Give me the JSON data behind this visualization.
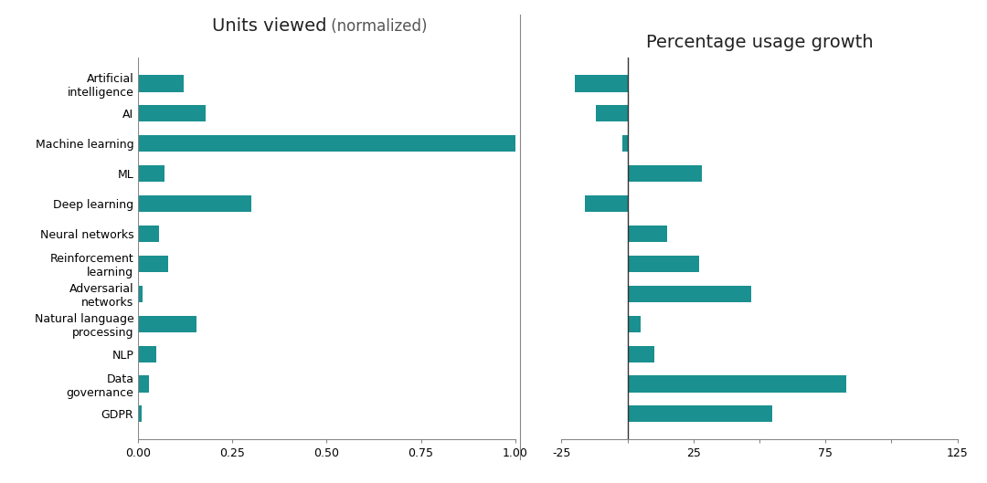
{
  "categories": [
    "Artificial\nintelligence",
    "AI",
    "Machine learning",
    "ML",
    "Deep learning",
    "Neural networks",
    "Reinforcement\nlearning",
    "Adversarial\nnetworks",
    "Natural language\nprocessing",
    "NLP",
    "Data\ngovernance",
    "GDPR"
  ],
  "units_viewed": [
    0.12,
    0.18,
    1.0,
    0.07,
    0.3,
    0.055,
    0.08,
    0.012,
    0.155,
    0.048,
    0.028,
    0.008
  ],
  "pct_growth": [
    -20,
    -12,
    -2,
    28,
    -16,
    15,
    27,
    47,
    5,
    10,
    83,
    55
  ],
  "bar_color": "#1a9090",
  "title_left_bold": "Units viewed",
  "title_left_light": " (normalized)",
  "title_right": "Percentage usage growth",
  "xlim_left": [
    0,
    1.0
  ],
  "xlim_right": [
    -25,
    125
  ],
  "xticks_left": [
    0.0,
    0.25,
    0.5,
    0.75,
    1.0
  ],
  "xtick_labels_left": [
    "0.00",
    "0.25",
    "0.50",
    "0.75",
    "1.00"
  ],
  "xticks_right": [
    -25,
    0,
    25,
    50,
    75,
    100,
    125
  ],
  "xtick_labels_right": [
    "-25",
    "",
    "25",
    "",
    "75",
    "",
    "125"
  ],
  "background_color": "#ffffff",
  "bar_height": 0.55,
  "title_fontsize": 14,
  "title_light_fontsize": 12,
  "label_fontsize": 9,
  "tick_fontsize": 9
}
